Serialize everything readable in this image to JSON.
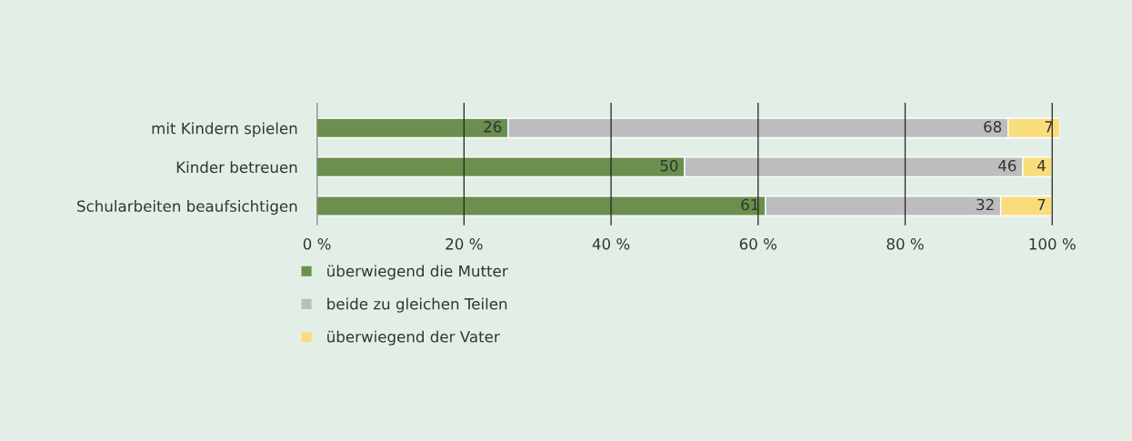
{
  "chart_data": {
    "type": "bar",
    "orientation": "horizontal",
    "stacked": true,
    "data_labels": true,
    "grid": "x",
    "legend": "bottom",
    "categories": [
      "mit Kindern spielen",
      "Kinder betreuen",
      "Schularbeiten beaufsichtigen"
    ],
    "series": [
      {
        "name": "überwiegend die Mutter",
        "color": "#6a8f4e",
        "values": [
          26,
          50,
          61
        ]
      },
      {
        "name": "beide zu gleichen Teilen",
        "color": "#bdbdbf",
        "values": [
          68,
          46,
          32
        ]
      },
      {
        "name": "überwiegend der Vater",
        "color": "#f9dc7c",
        "values": [
          7,
          4,
          7
        ]
      }
    ],
    "xlim": [
      0,
      101
    ],
    "xticks": [
      {
        "value": 0,
        "label": "0 %"
      },
      {
        "value": 20,
        "label": "20 %"
      },
      {
        "value": 40,
        "label": "40 %"
      },
      {
        "value": 60,
        "label": "60 %"
      },
      {
        "value": 80,
        "label": "80 %"
      },
      {
        "value": 100,
        "label": "100 %"
      }
    ]
  }
}
